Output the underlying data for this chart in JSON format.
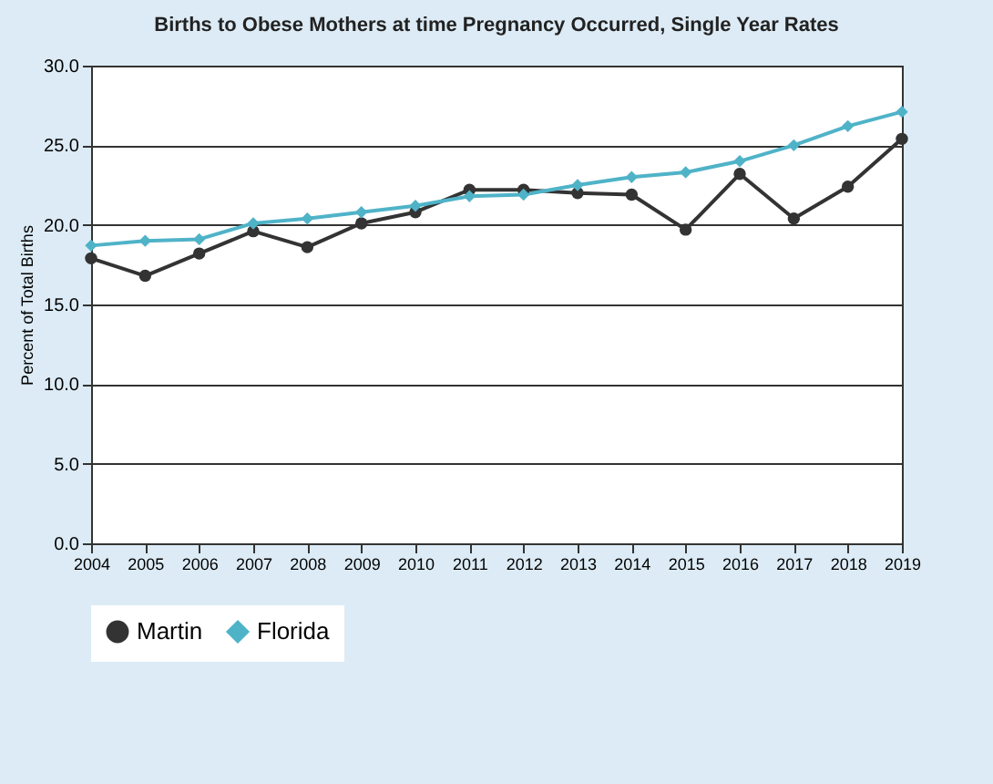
{
  "chart_data": {
    "type": "line",
    "title": "Births to Obese Mothers at time Pregnancy Occurred, Single Year Rates",
    "ylabel": "Percent of Total Births",
    "categories": [
      "2004",
      "2005",
      "2006",
      "2007",
      "2008",
      "2009",
      "2010",
      "2011",
      "2012",
      "2013",
      "2014",
      "2015",
      "2016",
      "2017",
      "2018",
      "2019"
    ],
    "series": [
      {
        "name": "Martin",
        "color": "#333333",
        "marker": "circle",
        "values": [
          17.9,
          16.8,
          18.2,
          19.6,
          18.6,
          20.1,
          20.8,
          22.2,
          22.2,
          22.0,
          21.9,
          19.7,
          23.2,
          20.4,
          22.4,
          25.4
        ]
      },
      {
        "name": "Florida",
        "color": "#4fb3c8",
        "marker": "diamond",
        "values": [
          18.7,
          19.0,
          19.1,
          20.1,
          20.4,
          20.8,
          21.2,
          21.8,
          21.9,
          22.5,
          23.0,
          23.3,
          24.0,
          25.0,
          26.2,
          27.1
        ]
      }
    ],
    "ylim": [
      0,
      30
    ],
    "yticks": [
      {
        "value": 0,
        "label": "0.0"
      },
      {
        "value": 5,
        "label": "5.0"
      },
      {
        "value": 10,
        "label": "10.0"
      },
      {
        "value": 15,
        "label": "15.0"
      },
      {
        "value": 20,
        "label": "20.0"
      },
      {
        "value": 25,
        "label": "25.0"
      },
      {
        "value": 30,
        "label": "30.0"
      }
    ],
    "grid": "y",
    "legend": "bottom",
    "line_style": "solid"
  }
}
